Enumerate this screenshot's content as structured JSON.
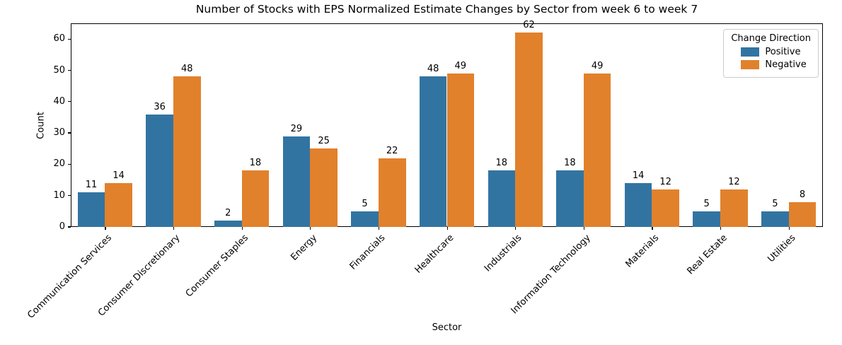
{
  "chart_data": {
    "type": "bar",
    "title": "Number of Stocks with EPS Normalized Estimate Changes by Sector from week 6 to week 7",
    "xlabel": "Sector",
    "ylabel": "Count",
    "categories": [
      "Communication Services",
      "Consumer Discretionary",
      "Consumer Staples",
      "Energy",
      "Financials",
      "Healthcare",
      "Industrials",
      "Information Technology",
      "Materials",
      "Real Estate",
      "Utilities"
    ],
    "series": [
      {
        "name": "Positive",
        "color": "#3274a1",
        "values": [
          11,
          36,
          2,
          29,
          5,
          48,
          18,
          18,
          14,
          5,
          5
        ]
      },
      {
        "name": "Negative",
        "color": "#e1812c",
        "values": [
          14,
          48,
          18,
          25,
          22,
          49,
          62,
          49,
          12,
          12,
          8
        ]
      }
    ],
    "ylim": [
      0,
      65
    ],
    "yticks": [
      0,
      10,
      20,
      30,
      40,
      50,
      60
    ],
    "bar_labels": true,
    "grid": false,
    "legend": {
      "title": "Change Direction",
      "position": "upper right"
    }
  }
}
